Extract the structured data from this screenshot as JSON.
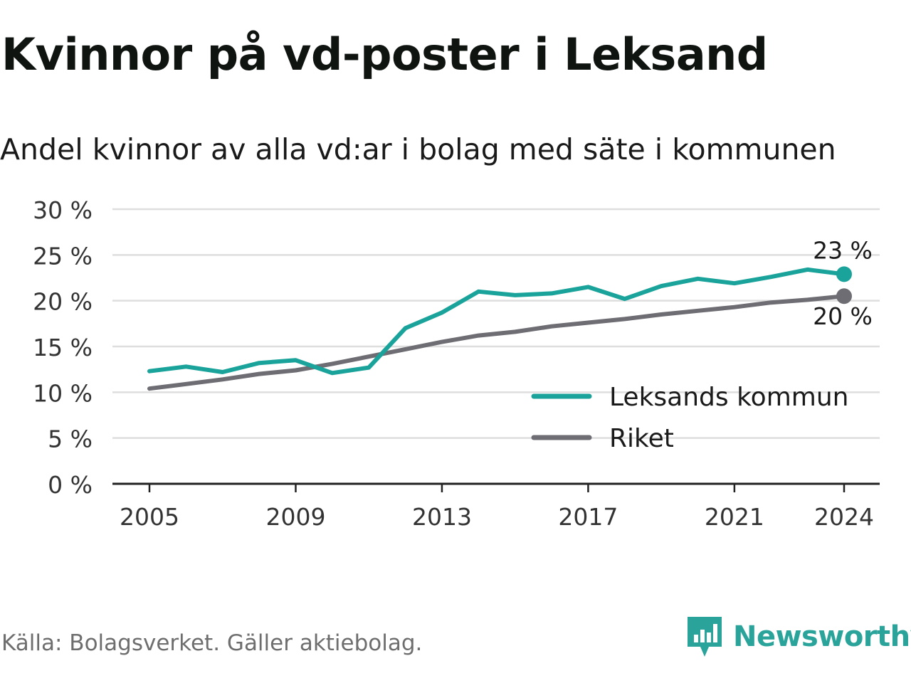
{
  "title": "Kvinnor på vd-poster i Leksand",
  "subtitle": "Andel kvinnor av alla vd:ar i bolag med säte i kommunen",
  "source": "Källa: Bolagsverket. Gäller aktiebolag.",
  "brand": "Newsworthy",
  "brand_icon": "newsworthy-logo-icon",
  "colors": {
    "leksand": "#1aa39a",
    "riket": "#6e6d73",
    "grid": "#dedede",
    "axis": "#222222"
  },
  "chart_data": {
    "type": "line",
    "x": [
      2005,
      2006,
      2007,
      2008,
      2009,
      2010,
      2011,
      2012,
      2013,
      2014,
      2015,
      2016,
      2017,
      2018,
      2019,
      2020,
      2021,
      2022,
      2023,
      2024
    ],
    "xticks": [
      "2005",
      "2009",
      "2013",
      "2017",
      "2021",
      "2024"
    ],
    "xtick_values": [
      2005,
      2009,
      2013,
      2017,
      2021,
      2024
    ],
    "yticks": [
      "0 %",
      "5 %",
      "10 %",
      "15 %",
      "20 %",
      "25 %",
      "30 %"
    ],
    "ytick_values": [
      0,
      5,
      10,
      15,
      20,
      25,
      30
    ],
    "ylim": [
      0,
      30
    ],
    "xlim": [
      2004,
      2025
    ],
    "grid": true,
    "legend_position": "lower-right",
    "series": [
      {
        "name": "Leksands kommun",
        "color": "#1aa39a",
        "values": [
          12.3,
          12.8,
          12.2,
          13.2,
          13.5,
          12.1,
          12.7,
          17.0,
          18.7,
          21.0,
          20.6,
          20.8,
          21.5,
          20.2,
          21.6,
          22.4,
          21.9,
          22.6,
          23.4,
          22.9
        ],
        "end_label": "23 %"
      },
      {
        "name": "Riket",
        "color": "#6e6d73",
        "values": [
          10.4,
          10.9,
          11.4,
          12.0,
          12.4,
          13.1,
          13.9,
          14.7,
          15.5,
          16.2,
          16.6,
          17.2,
          17.6,
          18.0,
          18.5,
          18.9,
          19.3,
          19.8,
          20.1,
          20.5
        ],
        "end_label": "20 %"
      }
    ]
  }
}
